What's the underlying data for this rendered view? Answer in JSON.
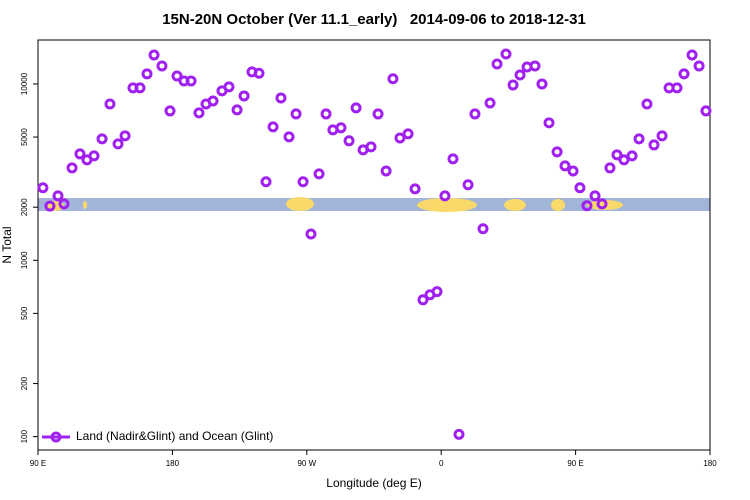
{
  "chart_data": {
    "type": "scatter",
    "title": "15N-20N October (Ver 11.1_early)   2014-09-06 to 2018-12-31",
    "x_label": "Longitude (deg E)",
    "y_label": "N Total",
    "log_y": true,
    "legend": "lower left",
    "xlim": [
      90,
      540
    ],
    "xticks": [
      {
        "value": 90,
        "label": "90 E"
      },
      180,
      {
        "value": 270,
        "label": "90 W"
      },
      {
        "value": 360,
        "label": "0"
      },
      {
        "value": 450,
        "label": "90 E"
      },
      {
        "value": 540,
        "label": "180"
      }
    ],
    "ylim": [
      84,
      17750
    ],
    "yticks": [
      100,
      200,
      500,
      1000,
      2000,
      5000,
      10000
    ],
    "series": [
      {
        "name": "Land (Nadir&Glint) and Ocean (Glint)",
        "color": "#a020f0",
        "x": [
          93.3,
          98,
          103.4,
          107.4,
          112.8,
          118.1,
          122.8,
          127.5,
          132.9,
          138.2,
          143.6,
          148.3,
          153.6,
          158.3,
          163,
          167.7,
          173,
          178.4,
          183.1,
          187.8,
          192.5,
          197.8,
          202.5,
          207.2,
          213.2,
          217.9,
          223.3,
          228,
          233.3,
          238,
          242.7,
          247.4,
          252.7,
          258.1,
          262.8,
          267.5,
          272.8,
          278.2,
          282.9,
          287.5,
          292.9,
          298.3,
          303,
          307.7,
          313,
          317.7,
          323.1,
          327.7,
          332.4,
          337.8,
          342.5,
          347.8,
          352.5,
          357.2,
          362.5,
          367.9,
          371.9,
          378,
          382.6,
          388,
          392.7,
          397.4,
          403.4,
          408.1,
          412.8,
          417.5,
          422.8,
          427.5,
          432.2,
          437.6,
          442.9,
          448.3,
          452.9,
          457.6,
          463,
          467.7,
          473,
          477.7,
          482.4,
          487.8,
          492.5,
          497.8,
          502.5,
          507.9,
          512.6,
          517.9,
          522.6,
          528,
          532.7,
          537.3
        ],
        "values": [
          2580,
          2030,
          2320,
          2090,
          3340,
          4010,
          3710,
          3910,
          4880,
          7700,
          4570,
          5080,
          9500,
          9500,
          11400,
          14600,
          12650,
          7030,
          11100,
          10400,
          10400,
          6850,
          7700,
          8000,
          9130,
          9620,
          7130,
          8550,
          11700,
          11500,
          2790,
          5710,
          8330,
          5010,
          6760,
          2790,
          1410,
          3090,
          6760,
          5490,
          5640,
          4760,
          7320,
          4230,
          4400,
          6760,
          3210,
          10700,
          4940,
          5210,
          2540,
          597,
          638,
          664,
          2320,
          3760,
          103,
          2680,
          6760,
          1510,
          7800,
          12980,
          14790,
          9870,
          11240,
          12470,
          12650,
          10000,
          6020,
          4120,
          3430,
          3210,
          2580,
          2040,
          2320,
          2090,
          3340,
          3960,
          3710,
          3910,
          4880,
          7700,
          4510,
          5080,
          9500,
          9500,
          11400,
          14600,
          12650,
          7030
        ]
      }
    ]
  }
}
